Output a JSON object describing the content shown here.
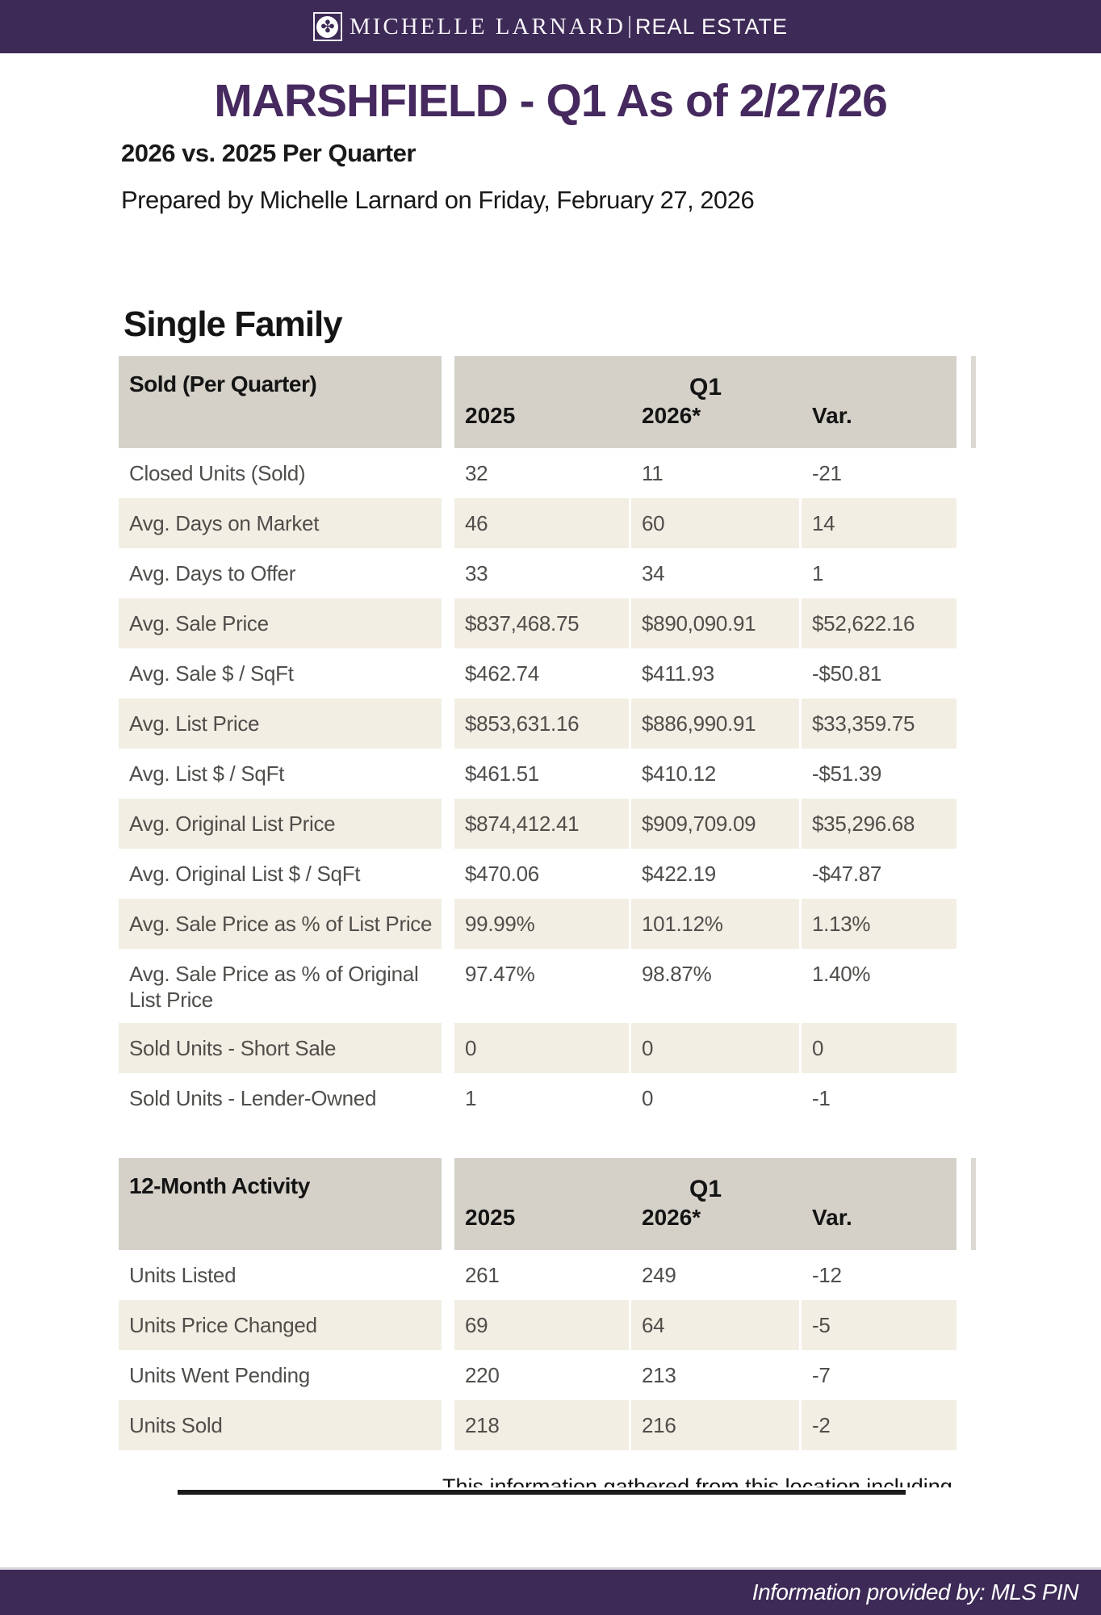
{
  "colors": {
    "brand_purple": "#3d2a57",
    "title_purple": "#46295e",
    "table_header_gray": "#d5d1c9",
    "shaded_row_beige": "#f3eee3",
    "edge_strip_gray": "#dcd8d2"
  },
  "brand_bar": {
    "icon": "clover-flower-icon",
    "icon_glyph": "✤",
    "name_serif": "MICHELLE LARNARD",
    "name_sans": "REAL ESTATE"
  },
  "report": {
    "title": "MARSHFIELD - Q1 As of 2/27/26",
    "comparison": "2026 vs. 2025 Per Quarter",
    "prepared_line": "Prepared by Michelle Larnard on Friday, February 27, 2026",
    "section": "Single Family"
  },
  "tables": [
    {
      "title": "Sold (Per Quarter)",
      "quarter": "Q1",
      "columns": [
        "2025",
        "2026*",
        "Var."
      ],
      "rows": [
        {
          "label": "Closed Units (Sold)",
          "values": [
            "32",
            "11",
            "-21"
          ],
          "shaded": false
        },
        {
          "label": "Avg. Days on Market",
          "values": [
            "46",
            "60",
            "14"
          ],
          "shaded": true
        },
        {
          "label": "Avg. Days to Offer",
          "values": [
            "33",
            "34",
            "1"
          ],
          "shaded": false
        },
        {
          "label": "Avg. Sale Price",
          "values": [
            "$837,468.75",
            "$890,090.91",
            "$52,622.16"
          ],
          "shaded": true
        },
        {
          "label": "Avg. Sale $ / SqFt",
          "values": [
            "$462.74",
            "$411.93",
            "-$50.81"
          ],
          "shaded": false
        },
        {
          "label": "Avg. List Price",
          "values": [
            "$853,631.16",
            "$886,990.91",
            "$33,359.75"
          ],
          "shaded": true
        },
        {
          "label": "Avg. List $ / SqFt",
          "values": [
            "$461.51",
            "$410.12",
            "-$51.39"
          ],
          "shaded": false
        },
        {
          "label": "Avg. Original List Price",
          "values": [
            "$874,412.41",
            "$909,709.09",
            "$35,296.68"
          ],
          "shaded": true
        },
        {
          "label": "Avg. Original List $ / SqFt",
          "values": [
            "$470.06",
            "$422.19",
            "-$47.87"
          ],
          "shaded": false
        },
        {
          "label": "Avg. Sale Price as % of List Price",
          "values": [
            "99.99%",
            "101.12%",
            "1.13%"
          ],
          "shaded": true
        },
        {
          "label": "Avg. Sale Price as % of Original List Price",
          "values": [
            "97.47%",
            "98.87%",
            "1.40%"
          ],
          "shaded": false
        },
        {
          "label": "Sold Units - Short Sale",
          "values": [
            "0",
            "0",
            "0"
          ],
          "shaded": true
        },
        {
          "label": "Sold Units - Lender-Owned",
          "values": [
            "1",
            "0",
            "-1"
          ],
          "shaded": false
        }
      ]
    },
    {
      "title": "12-Month Activity",
      "quarter": "Q1",
      "columns": [
        "2025",
        "2026*",
        "Var."
      ],
      "rows": [
        {
          "label": "Units Listed",
          "values": [
            "261",
            "249",
            "-12"
          ],
          "shaded": false
        },
        {
          "label": "Units Price Changed",
          "values": [
            "69",
            "64",
            "-5"
          ],
          "shaded": true
        },
        {
          "label": "Units Went Pending",
          "values": [
            "220",
            "213",
            "-7"
          ],
          "shaded": false
        },
        {
          "label": "Units Sold",
          "values": [
            "218",
            "216",
            "-2"
          ],
          "shaded": true
        }
      ]
    }
  ],
  "disclaimer_clipped": "This information gathered from this location including",
  "footer": {
    "attribution": "Information provided by: MLS PIN"
  }
}
